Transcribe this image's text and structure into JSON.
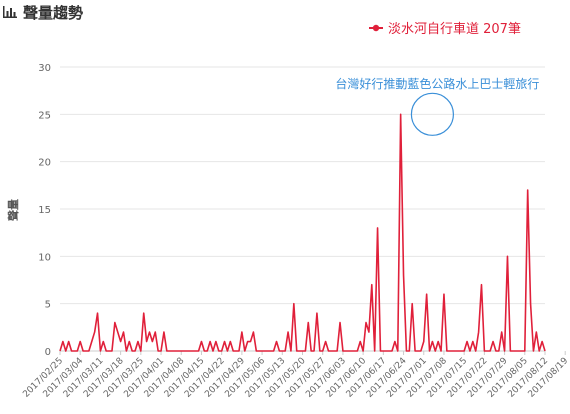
{
  "header": {
    "icon": "bar-chart-icon",
    "title": "聲量趨勢"
  },
  "colors": {
    "series": "#e0203a",
    "annotation": "#3a8fd8",
    "grid": "#e6e6e6",
    "axis_text": "#666666"
  },
  "chart_data": {
    "type": "line",
    "title": "",
    "xlabel": "",
    "ylabel": "聲量",
    "ylim": [
      0,
      30
    ],
    "yticks": [
      0,
      5,
      10,
      15,
      20,
      25,
      30
    ],
    "grid": true,
    "legend": {
      "position": "top-right"
    },
    "x_start": "2017/02/25",
    "xtick_labels": [
      "2017/02/25",
      "2017/03/04",
      "2017/03/11",
      "2017/03/18",
      "2017/03/25",
      "2017/04/01",
      "2017/04/08",
      "2017/04/15",
      "2017/04/22",
      "2017/04/29",
      "2017/05/06",
      "2017/05/13",
      "2017/05/20",
      "2017/05/27",
      "2017/06/03",
      "2017/06/10",
      "2017/06/17",
      "2017/06/24",
      "2017/07/01",
      "2017/07/08",
      "2017/07/15",
      "2017/07/22",
      "2017/07/29",
      "2017/08/05",
      "2017/08/12",
      "2017/08/19"
    ],
    "series": [
      {
        "name": "淡水河自行車道 207筆",
        "values": [
          0,
          1,
          0,
          1,
          0,
          0,
          0,
          1,
          0,
          0,
          0,
          1,
          2,
          4,
          0,
          1,
          0,
          0,
          0,
          3,
          2,
          1,
          2,
          0,
          1,
          0,
          0,
          1,
          0,
          4,
          1,
          2,
          1,
          2,
          0,
          0,
          2,
          0,
          0,
          0,
          0,
          0,
          0,
          0,
          0,
          0,
          0,
          0,
          0,
          1,
          0,
          0,
          1,
          0,
          1,
          0,
          0,
          1,
          0,
          1,
          0,
          0,
          0,
          2,
          0,
          1,
          1,
          2,
          0,
          0,
          0,
          0,
          0,
          0,
          0,
          1,
          0,
          0,
          0,
          2,
          0,
          5,
          0,
          0,
          0,
          0,
          3,
          0,
          0,
          4,
          0,
          0,
          1,
          0,
          0,
          0,
          0,
          3,
          0,
          0,
          0,
          0,
          0,
          0,
          1,
          0,
          3,
          2,
          7,
          0,
          13,
          0,
          0,
          0,
          0,
          0,
          1,
          0,
          25,
          8,
          0,
          0,
          5,
          0,
          0,
          0,
          1,
          6,
          0,
          1,
          0,
          1,
          0,
          6,
          0,
          0,
          0,
          0,
          0,
          0,
          0,
          1,
          0,
          1,
          0,
          2,
          7,
          0,
          0,
          0,
          1,
          0,
          0,
          2,
          0,
          10,
          0,
          0,
          0,
          0,
          0,
          0,
          17,
          5,
          0,
          2,
          0,
          1,
          0
        ]
      }
    ],
    "annotations": [
      {
        "text": "台灣好行推動藍色公路水上巴士輕旅行",
        "x": "2017/07/04",
        "y": 25
      }
    ]
  }
}
